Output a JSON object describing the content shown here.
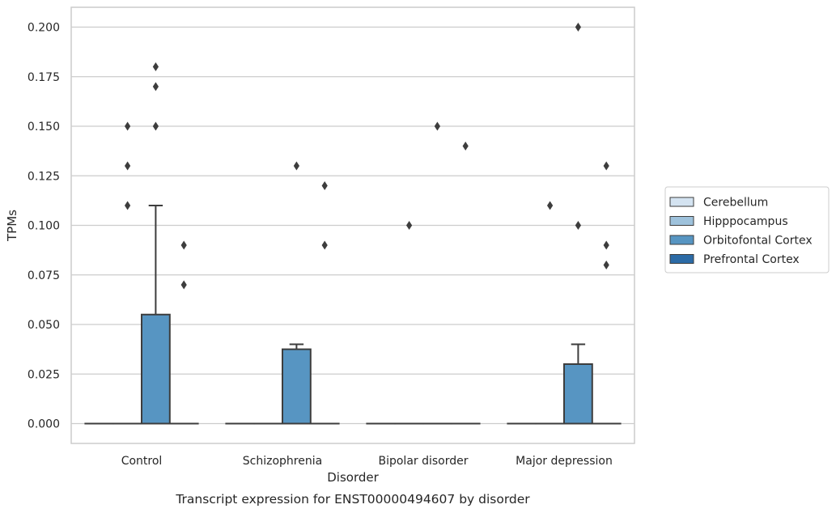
{
  "chart_data": {
    "type": "box",
    "title": "Transcript expression for ENST00000494607 by disorder",
    "xlabel": "Disorder",
    "ylabel": "TPMs",
    "ylim": [
      -0.01,
      0.21
    ],
    "yticks": [
      0.0,
      0.025,
      0.05,
      0.075,
      0.1,
      0.125,
      0.15,
      0.175,
      0.2
    ],
    "ytick_labels": [
      "0.000",
      "0.025",
      "0.050",
      "0.075",
      "0.100",
      "0.125",
      "0.150",
      "0.175",
      "0.200"
    ],
    "grid": "horizontal",
    "legend_position": "center-right",
    "categories": [
      "Control",
      "Schizophrenia",
      "Bipolar disorder",
      "Major depression"
    ],
    "series": [
      {
        "name": "Cerebellum",
        "color": "#d4e3f1",
        "boxes": [
          {
            "q1": 0,
            "median": 0,
            "q3": 0,
            "whisker_low": 0,
            "whisker_high": 0,
            "outliers": []
          },
          {
            "q1": 0,
            "median": 0,
            "q3": 0,
            "whisker_low": 0,
            "whisker_high": 0,
            "outliers": []
          },
          {
            "q1": 0,
            "median": 0,
            "q3": 0,
            "whisker_low": 0,
            "whisker_high": 0,
            "outliers": []
          },
          {
            "q1": 0,
            "median": 0,
            "q3": 0,
            "whisker_low": 0,
            "whisker_high": 0,
            "outliers": []
          }
        ]
      },
      {
        "name": "Hipppocampus",
        "color": "#9ec2dc",
        "boxes": [
          {
            "q1": 0,
            "median": 0,
            "q3": 0,
            "whisker_low": 0,
            "whisker_high": 0,
            "outliers": [
              0.15,
              0.13,
              0.11
            ]
          },
          {
            "q1": 0,
            "median": 0,
            "q3": 0,
            "whisker_low": 0,
            "whisker_high": 0,
            "outliers": []
          },
          {
            "q1": 0,
            "median": 0,
            "q3": 0,
            "whisker_low": 0,
            "whisker_high": 0,
            "outliers": [
              0.1
            ]
          },
          {
            "q1": 0,
            "median": 0,
            "q3": 0,
            "whisker_low": 0,
            "whisker_high": 0,
            "outliers": [
              0.11
            ]
          }
        ]
      },
      {
        "name": "Orbitofontal Cortex",
        "color": "#5795c2",
        "boxes": [
          {
            "q1": 0,
            "median": 0,
            "q3": 0.055,
            "whisker_low": 0,
            "whisker_high": 0.11,
            "outliers": [
              0.18,
              0.17,
              0.15
            ]
          },
          {
            "q1": 0,
            "median": 0,
            "q3": 0.0375,
            "whisker_low": 0,
            "whisker_high": 0.04,
            "outliers": [
              0.13
            ]
          },
          {
            "q1": 0,
            "median": 0,
            "q3": 0,
            "whisker_low": 0,
            "whisker_high": 0,
            "outliers": [
              0.15
            ]
          },
          {
            "q1": 0,
            "median": 0,
            "q3": 0.03,
            "whisker_low": 0,
            "whisker_high": 0.04,
            "outliers": [
              0.2,
              0.1
            ]
          }
        ]
      },
      {
        "name": "Prefrontal Cortex",
        "color": "#2c6ba6",
        "boxes": [
          {
            "q1": 0,
            "median": 0,
            "q3": 0,
            "whisker_low": 0,
            "whisker_high": 0,
            "outliers": [
              0.09,
              0.07
            ]
          },
          {
            "q1": 0,
            "median": 0,
            "q3": 0,
            "whisker_low": 0,
            "whisker_high": 0,
            "outliers": [
              0.12,
              0.09
            ]
          },
          {
            "q1": 0,
            "median": 0,
            "q3": 0,
            "whisker_low": 0,
            "whisker_high": 0,
            "outliers": [
              0.14
            ]
          },
          {
            "q1": 0,
            "median": 0,
            "q3": 0,
            "whisker_low": 0,
            "whisker_high": 0,
            "outliers": [
              0.13,
              0.09,
              0.08
            ]
          }
        ]
      }
    ]
  }
}
